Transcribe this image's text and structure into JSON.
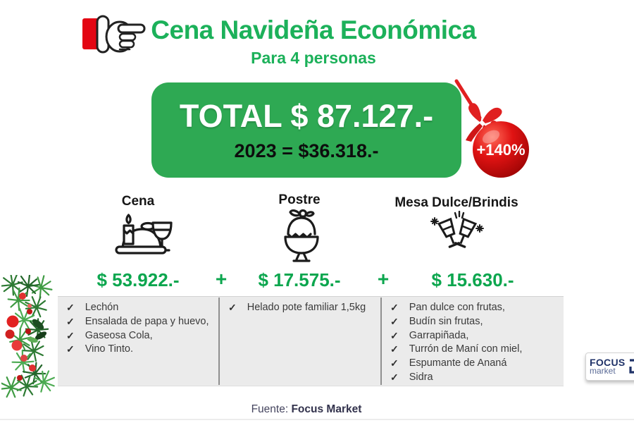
{
  "header": {
    "title": "Cena Navideña Económica",
    "subtitle": "Para 4 personas"
  },
  "total": {
    "headline": "TOTAL $ 87.127.-",
    "previous": "2023 = $36.318.-",
    "increase": "+140%"
  },
  "sections": {
    "plus_sign": "+",
    "columns": [
      {
        "title": "Cena",
        "icon": "dinner-icon",
        "price": "$ 53.922.-",
        "items": [
          "Lechón",
          "Ensalada de papa y huevo,",
          "Gaseosa Cola,",
          "Vino Tinto."
        ]
      },
      {
        "title": "Postre",
        "icon": "sundae-icon",
        "price": "$ 17.575.-",
        "items": [
          "Helado pote familiar 1,5kg"
        ]
      },
      {
        "title": "Mesa Dulce/Brindis",
        "icon": "toast-icon",
        "price": "$ 15.630.-",
        "items": [
          "Pan dulce con frutas,",
          "Budín sin frutas,",
          "Garrapiñada,",
          "Turrón de Maní con miel,",
          "Espumante de Ananá",
          "Sidra"
        ]
      }
    ]
  },
  "footer": {
    "source_label": "Fuente:",
    "source_name": "Focus Market"
  },
  "logo": {
    "line1": "FOCUS",
    "line2": "market"
  },
  "checkmark": "✓",
  "colors": {
    "title_green": "#1cb15a",
    "box_green": "#2ea953",
    "price_green": "#0ca64e",
    "ball_red": "#d21414",
    "logo_navy": "#1f3268"
  }
}
